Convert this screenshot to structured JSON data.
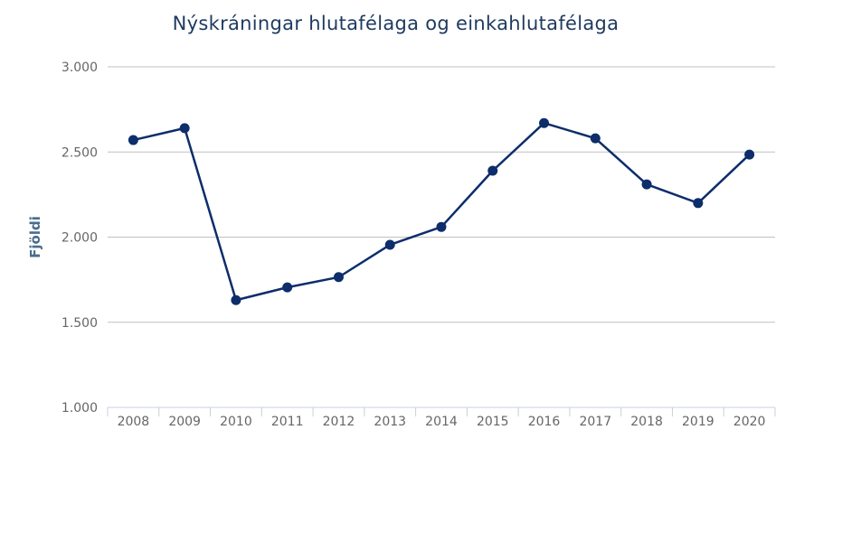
{
  "chart_data": {
    "type": "line",
    "title": "Nýskráningar hlutafélaga og einkahlutafélaga",
    "xlabel": "",
    "ylabel": "Fjöldi",
    "ylim": [
      1000,
      3000
    ],
    "yticks": [
      1000,
      1500,
      2000,
      2500,
      3000
    ],
    "ytick_labels": [
      "1.000",
      "1.500",
      "2.000",
      "2.500",
      "3.000"
    ],
    "categories": [
      "2008",
      "2009",
      "2010",
      "2011",
      "2012",
      "2013",
      "2014",
      "2015",
      "2016",
      "2017",
      "2018",
      "2019",
      "2020"
    ],
    "series": [
      {
        "values": [
          2570,
          2640,
          1630,
          1705,
          1765,
          1955,
          2060,
          2390,
          2670,
          2580,
          2310,
          2200,
          2485
        ],
        "color": "#0d2d6b"
      }
    ],
    "grid": true,
    "legend": "none"
  }
}
